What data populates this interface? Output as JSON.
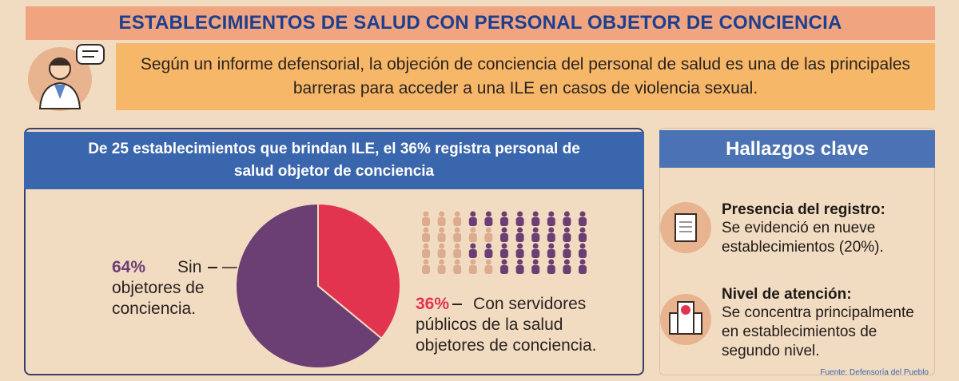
{
  "header": {
    "title": "ESTABLECIMIENTOS DE SALUD CON PERSONAL OBJETOR DE CONCIENCIA",
    "intro": "Según un informe defensorial, la objeción de conciencia del personal de salud es una de las principales barreras para acceder a una ILE en casos de violencia sexual."
  },
  "chart_data": {
    "type": "pie",
    "title": "De 25 establecimientos que brindan ILE, el 36% registra personal de salud objetor de conciencia",
    "categories": [
      "Con servidores públicos de la salud objetores de conciencia.",
      "Sin objetores de conciencia."
    ],
    "values": [
      36,
      64
    ],
    "value_labels": [
      "36%",
      "64%"
    ],
    "colors": [
      "#e2334f",
      "#6b3f73"
    ]
  },
  "findings": {
    "title": "Hallazgos clave",
    "items": [
      {
        "heading": "Presencia del registro:",
        "text": "Se evidenció en nueve establecimientos (20%)."
      },
      {
        "heading": "Nivel de atención:",
        "text": "Se concentra principalmente en establecimientos de segundo nivel."
      }
    ]
  },
  "source": "Fuente: Defensoría del Pueblo"
}
